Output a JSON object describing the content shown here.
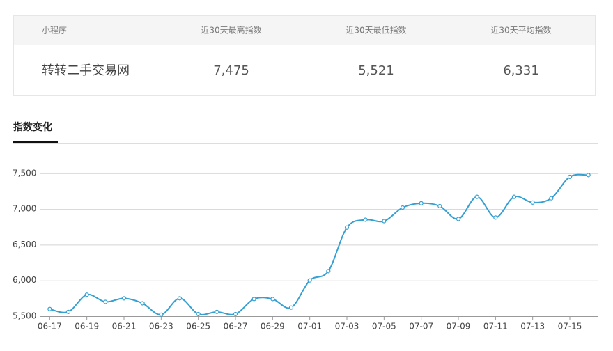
{
  "table": {
    "header": [
      "小程序",
      "近30天最高指数",
      "近30天最低指数",
      "近30天平均指数"
    ],
    "rows": [
      [
        "转转二手交易网",
        "7,475",
        "5,521",
        "6,331"
      ]
    ]
  },
  "chart_data": {
    "type": "line",
    "title": "指数变化",
    "categories": [
      "06-17",
      null,
      "06-19",
      null,
      "06-21",
      null,
      "06-23",
      null,
      "06-25",
      null,
      "06-27",
      null,
      "06-29",
      null,
      "07-01",
      null,
      "07-03",
      null,
      "07-05",
      null,
      "07-07",
      null,
      "07-09",
      null,
      "07-11",
      null,
      "07-13",
      null,
      "07-15",
      null
    ],
    "series": [
      {
        "color": "#35a0d2",
        "values": [
          5600,
          5560,
          5800,
          5700,
          5750,
          5680,
          5521,
          5750,
          5530,
          5560,
          5530,
          5740,
          5740,
          5620,
          6000,
          6130,
          6740,
          6850,
          6830,
          7020,
          7080,
          7040,
          6860,
          7170,
          6880,
          7170,
          7090,
          7150,
          7450,
          7475
        ]
      }
    ],
    "ylim": [
      5500,
      7800
    ],
    "yticks": [
      {
        "value": 5500,
        "label": "5,500"
      },
      {
        "value": 6000,
        "label": "6,000"
      },
      {
        "value": 6500,
        "label": "6,500"
      },
      {
        "value": 7000,
        "label": "7,000"
      },
      {
        "value": 7500,
        "label": "7,500"
      }
    ],
    "grid": true
  }
}
